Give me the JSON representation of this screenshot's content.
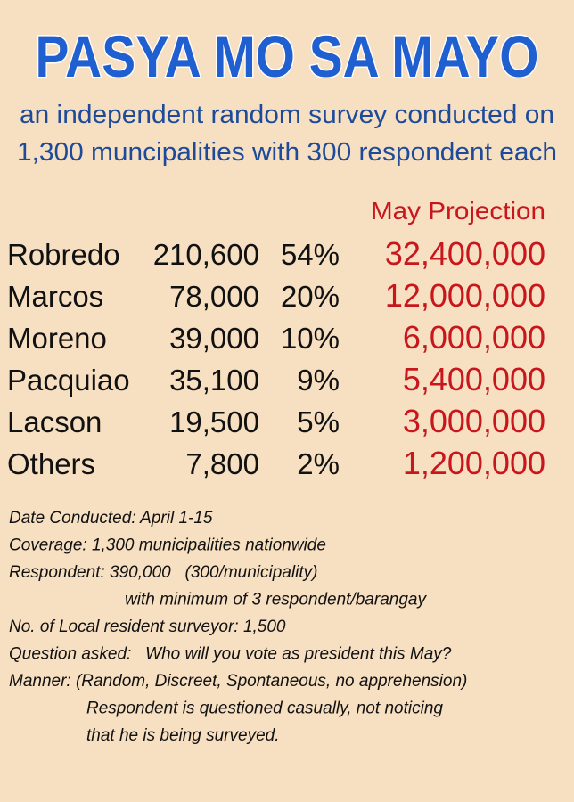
{
  "header": {
    "title": "PASYA MO SA MAYO",
    "subtitle": [
      "an independent random survey conducted on",
      "1,300 muncipalities with 300 respondent each"
    ]
  },
  "table": {
    "projection_header": "May Projection",
    "rows": [
      [
        "Robredo",
        "210,600",
        "54%",
        "32,400,000"
      ],
      [
        "Marcos",
        "78,000",
        "20%",
        "12,000,000"
      ],
      [
        "Moreno",
        "39,000",
        "10%",
        "6,000,000"
      ],
      [
        "Pacquiao",
        "35,100",
        "9%",
        "5,400,000"
      ],
      [
        "Lacson",
        "19,500",
        "5%",
        "3,000,000"
      ],
      [
        "Others",
        "7,800",
        "2%",
        "1,200,000"
      ]
    ]
  },
  "notes": [
    "Date Conducted: April 1-15",
    "Coverage: 1,300 municipalities nationwide",
    "Respondent: 390,000   (300/municipality)",
    "with minimum of 3 respondent/barangay",
    "No. of Local resident surveyor: 1,500",
    "Question asked:   Who will you vote as president this May?",
    "Manner: (Random, Discreet, Spontaneous, no apprehension)",
    "Respondent is questioned casually, not noticing",
    "that he is being surveyed."
  ]
}
